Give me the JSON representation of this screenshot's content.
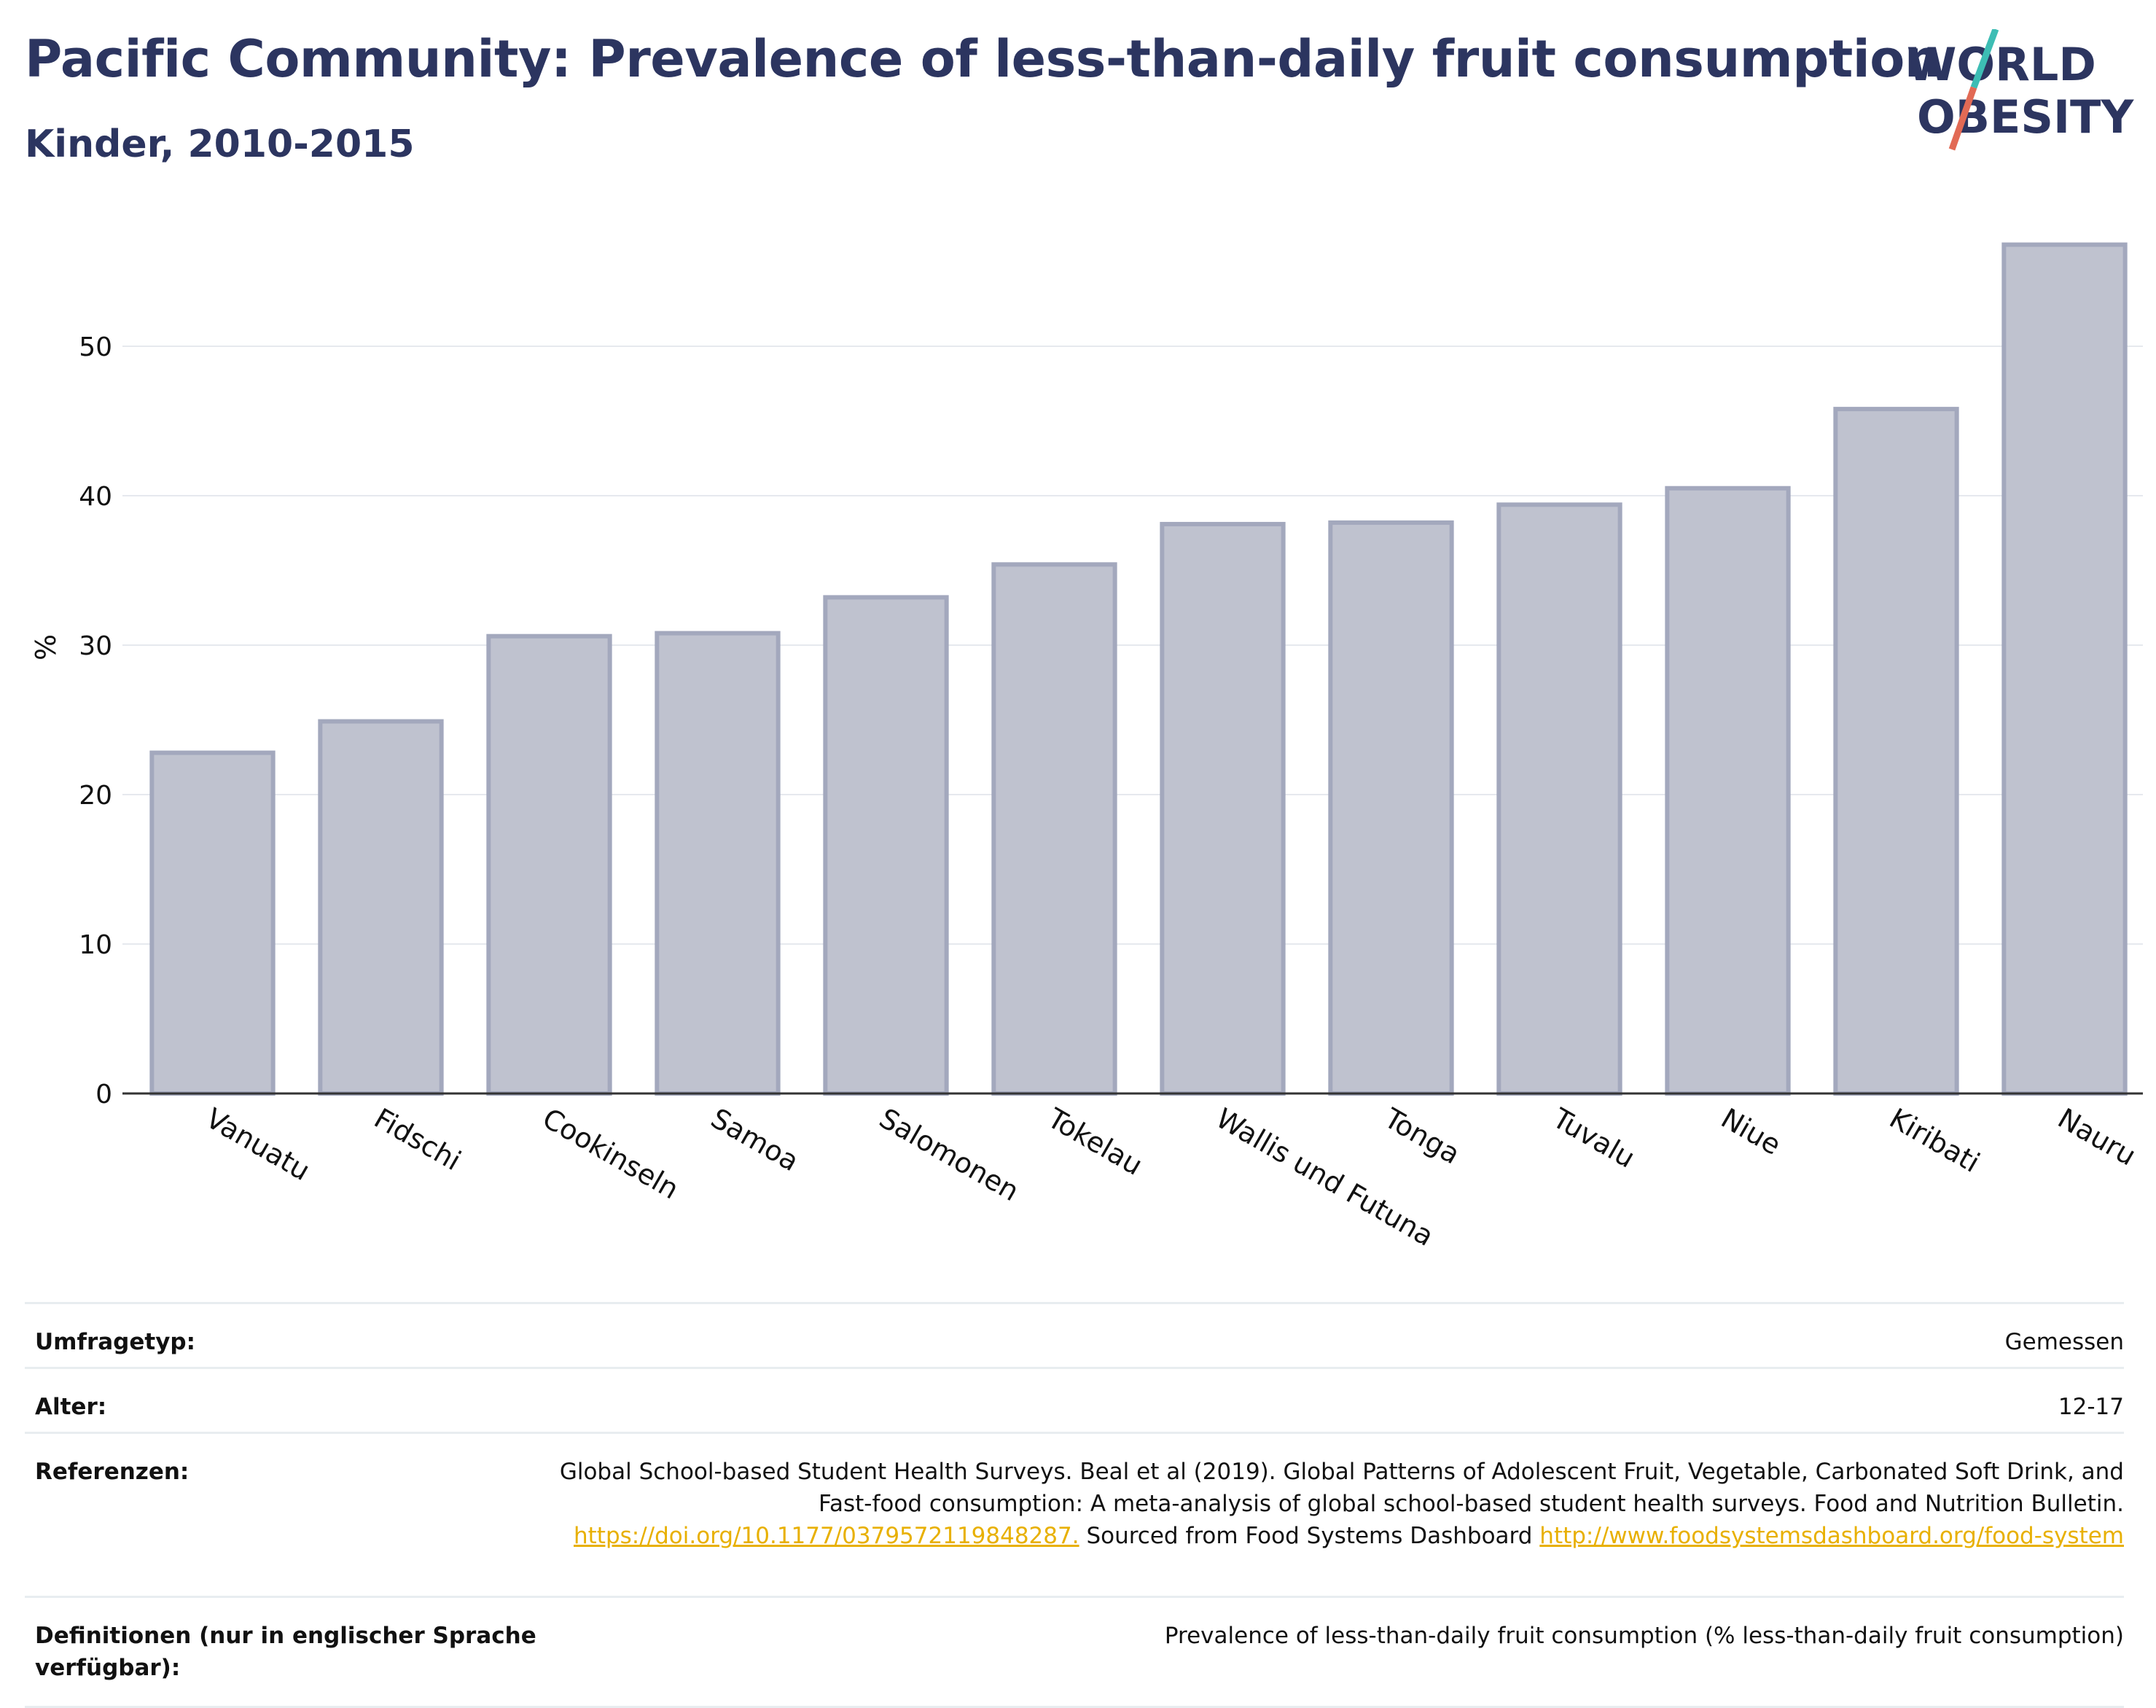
{
  "header": {
    "title": "Pacific Community: Prevalence of less-than-daily fruit consumption",
    "subtitle": "Kinder, 2010-2015"
  },
  "logo": {
    "line1": "WORLD",
    "line2": "OBESITY",
    "accent_teal": "#3dbdb4",
    "accent_red": "#e26a55"
  },
  "chart_data": {
    "type": "bar",
    "categories": [
      "Vanuatu",
      "Fidschi",
      "Cookinseln",
      "Samoa",
      "Salomonen",
      "Tokelau",
      "Wallis und Futuna",
      "Tonga",
      "Tuvalu",
      "Niue",
      "Kiribati",
      "Nauru"
    ],
    "values": [
      22.8,
      24.9,
      30.6,
      30.8,
      33.2,
      35.4,
      38.1,
      38.2,
      39.4,
      40.5,
      45.8,
      56.8
    ],
    "ylabel": "%",
    "xlabel": "",
    "ylim": [
      0,
      60
    ],
    "yticks": [
      0,
      10,
      20,
      30,
      40,
      50
    ],
    "grid": true,
    "bar_fill": "#bfc2cf",
    "bar_stroke": "#a3a8bd"
  },
  "meta": {
    "survey_label": "Umfragetyp:",
    "survey_value": "Gemessen",
    "age_label": "Alter:",
    "age_value": "12-17",
    "ref_label": "Referenzen:",
    "ref_text1": "Global School-based Student Health Surveys. Beal et al (2019). Global Patterns of Adolescent Fruit, Vegetable, Carbonated Soft Drink, and Fast-food consumption: A meta-analysis of global school-based student health surveys. Food and Nutrition Bulletin.",
    "ref_link1": "https://doi.org/10.1177/0379572119848287.",
    "ref_text2": "Sourced from Food Systems Dashboard",
    "ref_link2": "http://www.foodsystemsdashboard.org/food-system",
    "def_label": "Definitionen (nur in englischer Sprache verfügbar):",
    "def_value": "Prevalence of less-than-daily fruit consumption (% less-than-daily fruit consumption)"
  }
}
